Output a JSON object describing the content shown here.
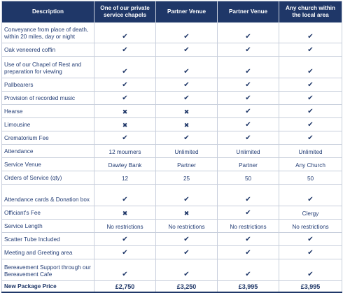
{
  "headers": [
    "Description",
    "One of our private service chapels",
    "Partner Venue",
    "Partner Venue",
    "Any church within the local area"
  ],
  "icons": {
    "check": "✔",
    "cross": "✖"
  },
  "rows": [
    {
      "label": "Conveyance from place of death, within 20 miles, day or night",
      "size": "h2",
      "cells": [
        {
          "icon": "check"
        },
        {
          "icon": "check"
        },
        {
          "icon": "check"
        },
        {
          "icon": "check"
        }
      ]
    },
    {
      "label": "Oak veneered coffin",
      "size": "h1",
      "cells": [
        {
          "icon": "check"
        },
        {
          "icon": "check"
        },
        {
          "icon": "check"
        },
        {
          "icon": "check"
        }
      ]
    },
    {
      "label": "Use of our Chapel of Rest and preparation for viewing",
      "size": "h3",
      "cells": [
        {
          "icon": "check"
        },
        {
          "icon": "check"
        },
        {
          "icon": "check"
        },
        {
          "icon": "check"
        }
      ]
    },
    {
      "label": "Pallbearers",
      "size": "h1",
      "cells": [
        {
          "icon": "check"
        },
        {
          "icon": "check"
        },
        {
          "icon": "check"
        },
        {
          "icon": "check"
        }
      ]
    },
    {
      "label": "Provision of recorded music",
      "size": "h1",
      "cells": [
        {
          "icon": "check"
        },
        {
          "icon": "check"
        },
        {
          "icon": "check"
        },
        {
          "icon": "check"
        }
      ]
    },
    {
      "label": "Hearse",
      "size": "h1",
      "cells": [
        {
          "icon": "cross"
        },
        {
          "icon": "cross"
        },
        {
          "icon": "check"
        },
        {
          "icon": "check"
        }
      ]
    },
    {
      "label": "Limousine",
      "size": "h1",
      "cells": [
        {
          "icon": "cross"
        },
        {
          "icon": "cross"
        },
        {
          "icon": "check"
        },
        {
          "icon": "check"
        }
      ]
    },
    {
      "label": "Crematorium Fee",
      "size": "h1",
      "cells": [
        {
          "icon": "check"
        },
        {
          "icon": "check"
        },
        {
          "icon": "check"
        },
        {
          "icon": "check"
        }
      ]
    },
    {
      "label": "Attendance",
      "size": "h1",
      "cells": [
        {
          "text": "12 mourners"
        },
        {
          "text": "Unlimited"
        },
        {
          "text": "Unlimited"
        },
        {
          "text": "Unlimited"
        }
      ]
    },
    {
      "label": "Service Venue",
      "size": "h1",
      "cells": [
        {
          "text": "Dawley Bank"
        },
        {
          "text": "Partner"
        },
        {
          "text": "Partner"
        },
        {
          "text": "Any Church"
        }
      ]
    },
    {
      "label": "Orders of Service (qty)",
      "size": "h1",
      "cells": [
        {
          "text": "12"
        },
        {
          "text": "25"
        },
        {
          "text": "50"
        },
        {
          "text": "50"
        }
      ]
    },
    {
      "label": "Attendance cards & Donation box",
      "size": "h3",
      "cells": [
        {
          "icon": "check"
        },
        {
          "icon": "check"
        },
        {
          "icon": "check"
        },
        {
          "icon": "check"
        }
      ]
    },
    {
      "label": "Officiant's Fee",
      "size": "h1",
      "cells": [
        {
          "icon": "cross"
        },
        {
          "icon": "cross"
        },
        {
          "icon": "check"
        },
        {
          "text": "Clergy"
        }
      ]
    },
    {
      "label": "Service Length",
      "size": "h1",
      "cells": [
        {
          "text": "No restrictions"
        },
        {
          "text": "No restrictions"
        },
        {
          "text": "No restrictions"
        },
        {
          "text": "No restrictions"
        }
      ]
    },
    {
      "label": "Scatter Tube Included",
      "size": "h1",
      "cells": [
        {
          "icon": "check"
        },
        {
          "icon": "check"
        },
        {
          "icon": "check"
        },
        {
          "icon": "check"
        }
      ]
    },
    {
      "label": "Meeting and Greeting area",
      "size": "h1",
      "cells": [
        {
          "icon": "check"
        },
        {
          "icon": "check"
        },
        {
          "icon": "check"
        },
        {
          "icon": "check"
        }
      ]
    },
    {
      "label": "Bereavement Support through our Bereavement Cafe",
      "size": "h3",
      "cells": [
        {
          "icon": "check"
        },
        {
          "icon": "check"
        },
        {
          "icon": "check"
        },
        {
          "icon": "check"
        }
      ]
    }
  ],
  "total": {
    "label": "New Package Price",
    "prices": [
      "£2,750",
      "£3,250",
      "£3,995",
      "£3,995"
    ]
  }
}
